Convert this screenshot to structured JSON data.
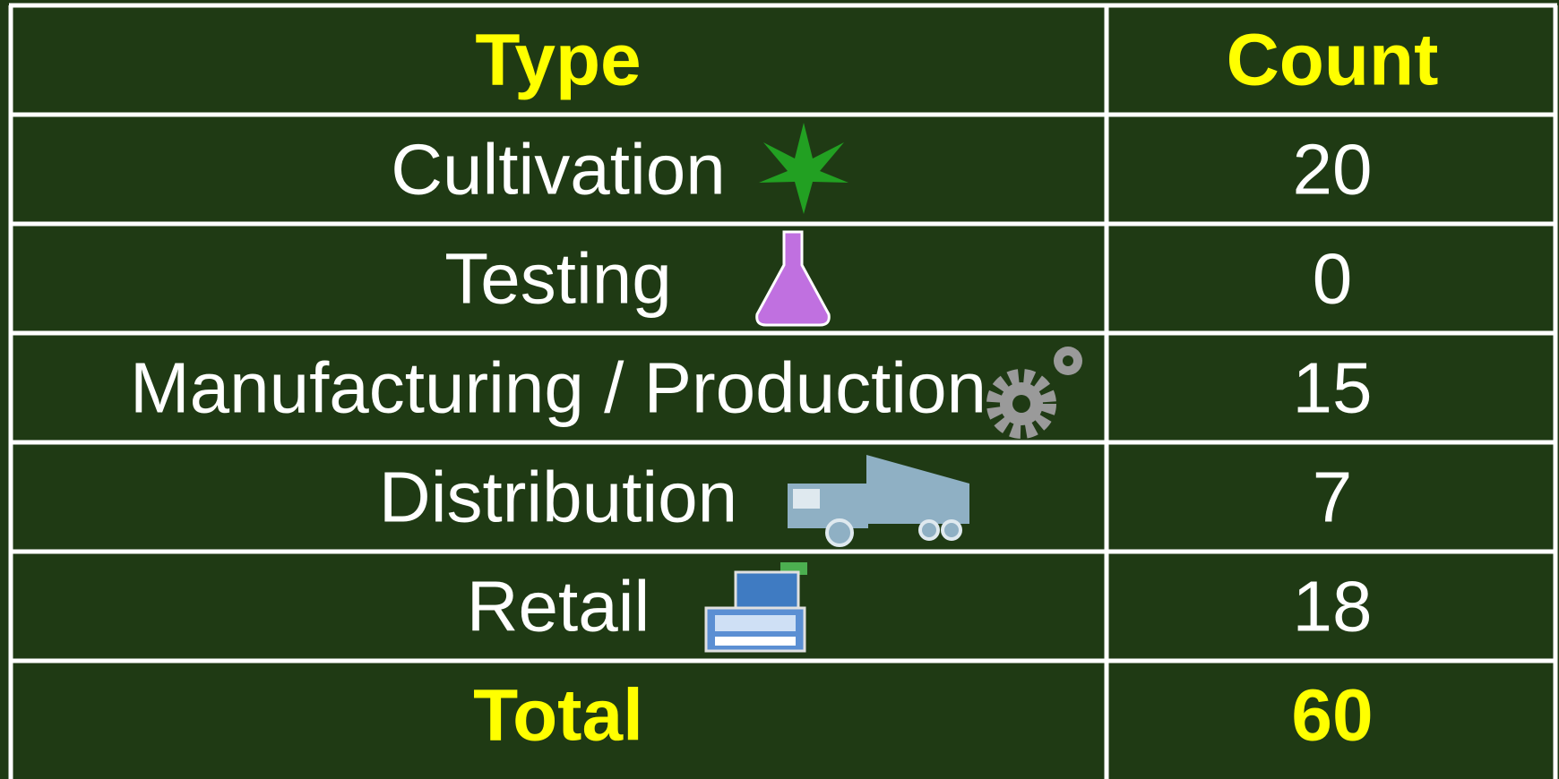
{
  "table": {
    "header": [
      "Type",
      "Count"
    ],
    "rows": [
      [
        "Cultivation",
        20
      ],
      [
        "Testing",
        0
      ],
      [
        "Manufacturing / Production",
        15
      ],
      [
        "Distribution",
        7
      ],
      [
        "Retail",
        18
      ]
    ],
    "total": [
      "Total",
      60
    ]
  }
}
